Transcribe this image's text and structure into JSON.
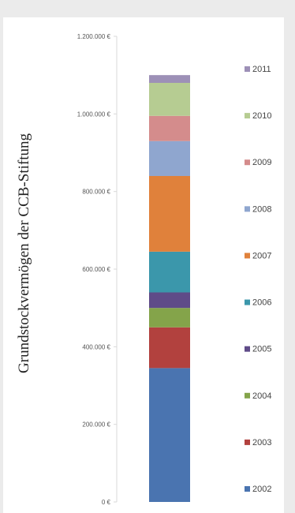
{
  "chart_data": {
    "type": "bar",
    "stacked": true,
    "ylabel": "Grundstockvermögen der CCB-Stiftung",
    "ylim": [
      0,
      1200000
    ],
    "yticks": [
      {
        "value": 0,
        "label": "0 €"
      },
      {
        "value": 200000,
        "label": "200.000 €"
      },
      {
        "value": 400000,
        "label": "400.000 €"
      },
      {
        "value": 600000,
        "label": "600.000 €"
      },
      {
        "value": 800000,
        "label": "800.000 €"
      },
      {
        "value": 1000000,
        "label": "1.000.000 €"
      },
      {
        "value": 1200000,
        "label": "1.200.000 €"
      }
    ],
    "grid": false,
    "legend": "right",
    "series": [
      {
        "name": "2002",
        "value": 345000,
        "color": "#4a74b0"
      },
      {
        "name": "2003",
        "value": 105000,
        "color": "#b2413e"
      },
      {
        "name": "2004",
        "value": 50000,
        "color": "#84a44a"
      },
      {
        "name": "2005",
        "value": 40000,
        "color": "#5f4b88"
      },
      {
        "name": "2006",
        "value": 105000,
        "color": "#3b97ab"
      },
      {
        "name": "2007",
        "value": 195000,
        "color": "#e0813b"
      },
      {
        "name": "2008",
        "value": 90000,
        "color": "#8fa6cf"
      },
      {
        "name": "2009",
        "value": 65000,
        "color": "#d48c8c"
      },
      {
        "name": "2010",
        "value": 85000,
        "color": "#b6cc92"
      },
      {
        "name": "2011",
        "value": 20000,
        "color": "#9d90b7"
      }
    ]
  }
}
